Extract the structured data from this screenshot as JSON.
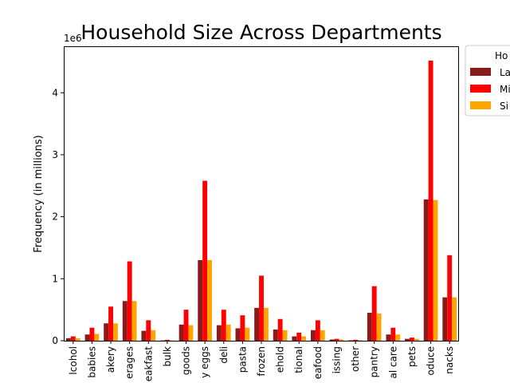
{
  "chart_data": {
    "type": "bar",
    "title": "Household Size Across Departments",
    "xlabel": "",
    "ylabel": "Frequency (in millions)",
    "y_offset_label": "1e6",
    "ylim": [
      0,
      4.75
    ],
    "yticks": [
      "0",
      "1",
      "2",
      "3",
      "4"
    ],
    "grid": false,
    "legend": {
      "title": "Ho",
      "placement": "outside top-right",
      "entries": [
        "La",
        "Mi",
        "Si"
      ]
    },
    "categories": [
      "lcohol",
      "babies",
      "akery",
      "erages",
      "eakfast",
      "bulk",
      "goods",
      "y eggs",
      "deli",
      "pasta",
      "frozen",
      "ehold",
      "tional",
      "eafood",
      "issing",
      "other",
      "pantry",
      "al care",
      "pets",
      "oduce",
      "nacks"
    ],
    "series": [
      {
        "name": "La",
        "color": "#8b1a1a",
        "values": [
          0.04,
          0.1,
          0.28,
          0.64,
          0.16,
          0.005,
          0.26,
          1.3,
          0.25,
          0.2,
          0.53,
          0.18,
          0.07,
          0.17,
          0.02,
          0.007,
          0.45,
          0.1,
          0.03,
          2.28,
          0.7
        ]
      },
      {
        "name": "Mi",
        "color": "#ff0000",
        "values": [
          0.07,
          0.21,
          0.55,
          1.28,
          0.33,
          0.015,
          0.5,
          2.58,
          0.5,
          0.41,
          1.05,
          0.35,
          0.13,
          0.33,
          0.03,
          0.015,
          0.88,
          0.21,
          0.05,
          4.52,
          1.38
        ]
      },
      {
        "name": "Si",
        "color": "#ffa500",
        "values": [
          0.04,
          0.11,
          0.28,
          0.64,
          0.17,
          0.005,
          0.25,
          1.3,
          0.26,
          0.21,
          0.53,
          0.17,
          0.07,
          0.17,
          0.02,
          0.007,
          0.44,
          0.1,
          0.03,
          2.27,
          0.7
        ]
      }
    ]
  }
}
